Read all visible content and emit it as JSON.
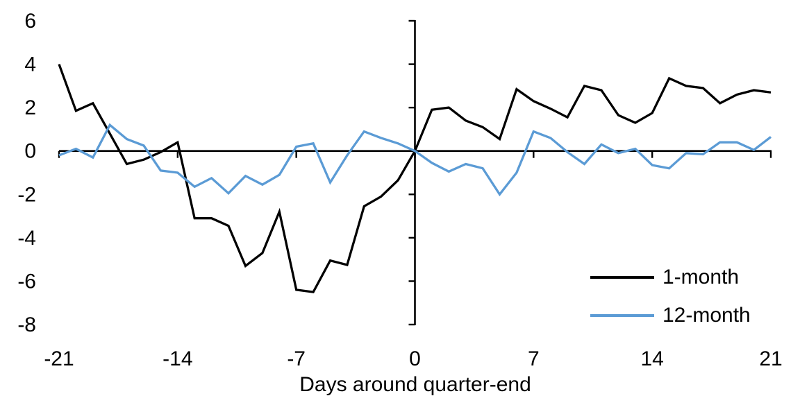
{
  "chart_data": {
    "type": "line",
    "title": "",
    "xlabel": "Days around quarter-end",
    "ylabel": "",
    "xlim": [
      -21,
      21
    ],
    "ylim": [
      -8,
      6
    ],
    "xticks": [
      -21,
      -14,
      -7,
      0,
      7,
      14,
      21
    ],
    "yticks": [
      6,
      4,
      2,
      0,
      -2,
      -4,
      -6,
      -8
    ],
    "grid": false,
    "legend_position": "inside lower right",
    "axis_color": "#000000",
    "x": [
      -21,
      -20,
      -19,
      -18,
      -17,
      -16,
      -15,
      -14,
      -13,
      -12,
      -11,
      -10,
      -9,
      -8,
      -7,
      -6,
      -5,
      -4,
      -3,
      -2,
      -1,
      0,
      1,
      2,
      3,
      4,
      5,
      6,
      7,
      8,
      9,
      10,
      11,
      12,
      13,
      14,
      15,
      16,
      17,
      18,
      19,
      20,
      21
    ],
    "series": [
      {
        "name": "1-month",
        "color": "#000000",
        "values": [
          4.0,
          1.85,
          2.2,
          0.8,
          -0.6,
          -0.4,
          -0.05,
          0.4,
          -3.1,
          -3.1,
          -3.45,
          -5.3,
          -4.7,
          -2.8,
          -6.4,
          -6.5,
          -5.05,
          -5.25,
          -2.55,
          -2.1,
          -1.35,
          0.0,
          1.9,
          2.0,
          1.4,
          1.1,
          0.55,
          2.85,
          2.3,
          1.95,
          1.55,
          3.0,
          2.8,
          1.65,
          1.3,
          1.75,
          3.35,
          3.0,
          2.9,
          2.2,
          2.6,
          2.8,
          2.7
        ]
      },
      {
        "name": "12-month",
        "color": "#5B9BD5",
        "values": [
          -0.2,
          0.1,
          -0.3,
          1.2,
          0.55,
          0.25,
          -0.9,
          -1.0,
          -1.65,
          -1.25,
          -1.95,
          -1.15,
          -1.55,
          -1.1,
          0.2,
          0.35,
          -1.45,
          -0.2,
          0.9,
          0.6,
          0.35,
          0.0,
          -0.55,
          -0.95,
          -0.6,
          -0.8,
          -2.0,
          -1.0,
          0.9,
          0.6,
          -0.05,
          -0.6,
          0.3,
          -0.1,
          0.1,
          -0.65,
          -0.8,
          -0.1,
          -0.15,
          0.4,
          0.4,
          0.05,
          0.65
        ]
      }
    ]
  }
}
